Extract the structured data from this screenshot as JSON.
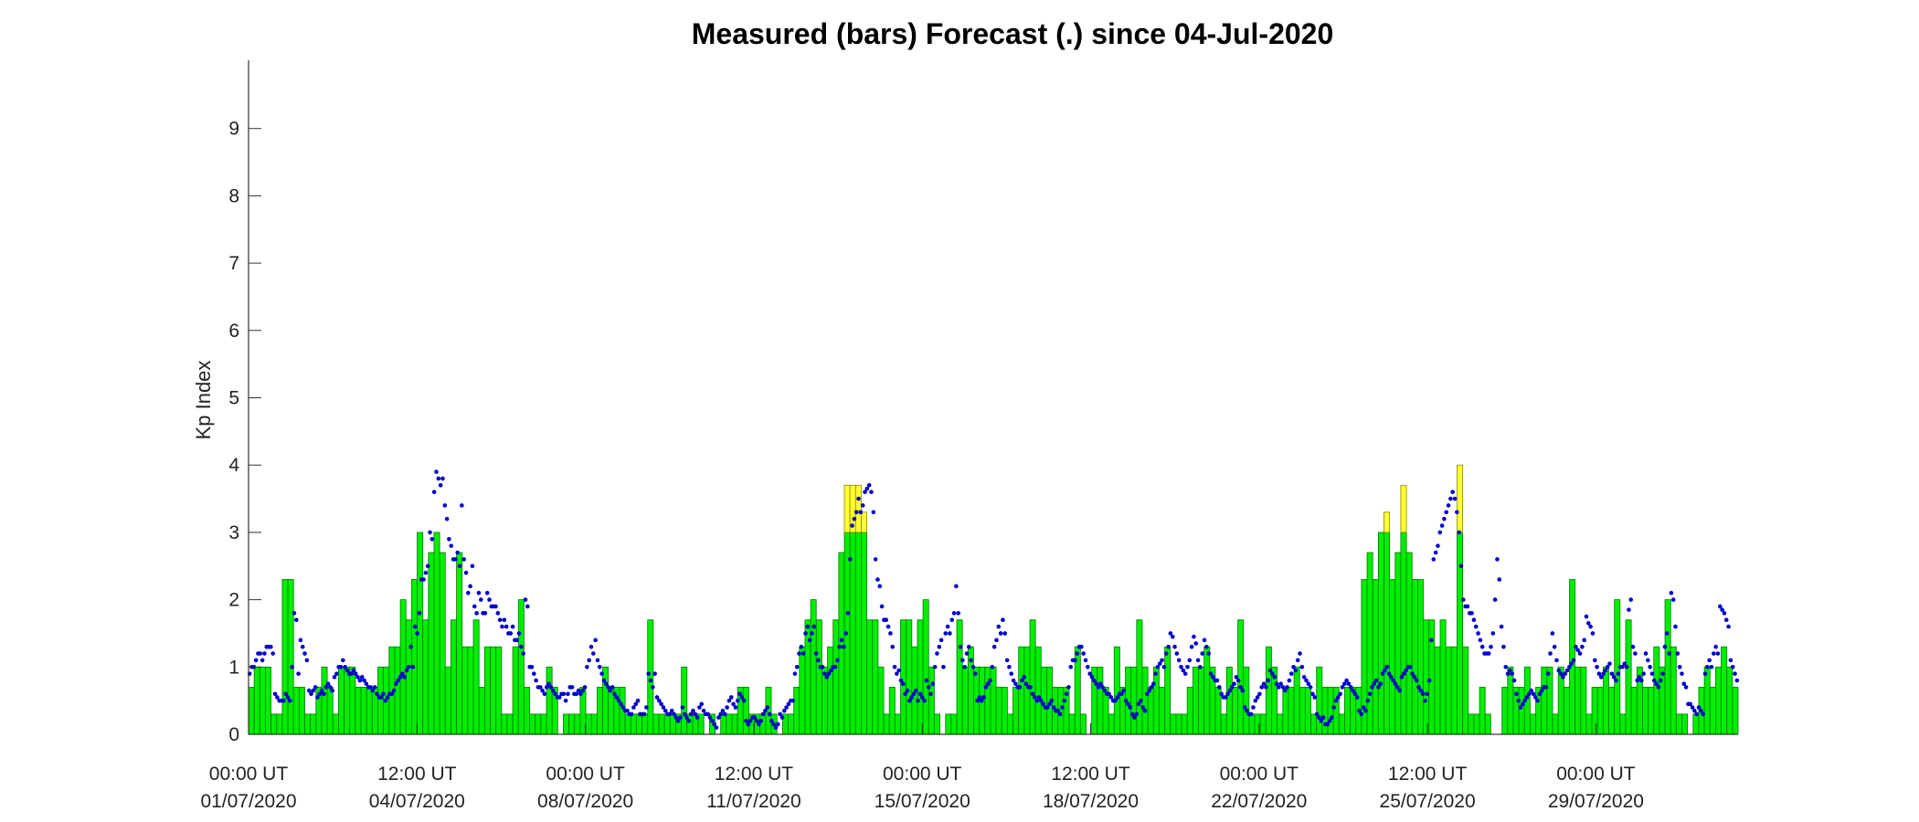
{
  "chart_data": {
    "type": "bar",
    "title": "Measured (bars) Forecast (.) since 04-Jul-2020",
    "ylabel": "Kp Index",
    "xlabel": "",
    "ylim": [
      0,
      10
    ],
    "yticks": [
      0,
      1,
      2,
      3,
      4,
      5,
      6,
      7,
      8,
      9
    ],
    "grid": false,
    "colors": {
      "measured": "#00ee00",
      "measured_edge": "#007a00",
      "high": "#ffff33",
      "high_edge": "#8a8a00",
      "forecast": "#0000cc",
      "axis": "#333333"
    },
    "x_tick_labels": [
      {
        "time": "00:00 UT",
        "date": "01/07/2020"
      },
      {
        "time": "12:00 UT",
        "date": "04/07/2020"
      },
      {
        "time": "00:00 UT",
        "date": "08/07/2020"
      },
      {
        "time": "12:00 UT",
        "date": "11/07/2020"
      },
      {
        "time": "00:00 UT",
        "date": "15/07/2020"
      },
      {
        "time": "12:00 UT",
        "date": "18/07/2020"
      },
      {
        "time": "00:00 UT",
        "date": "22/07/2020"
      },
      {
        "time": "12:00 UT",
        "date": "25/07/2020"
      },
      {
        "time": "00:00 UT",
        "date": "29/07/2020"
      }
    ],
    "series": [
      {
        "name": "Measured",
        "note": "3-hour Kp values starting 00:00 UT 01/07/2020",
        "values": [
          0.7,
          1,
          1,
          1,
          0.3,
          0.3,
          2.3,
          2.3,
          0.7,
          0.7,
          0.3,
          0.3,
          0.7,
          1,
          0.7,
          0.3,
          1,
          1,
          1,
          0.7,
          0.7,
          0.7,
          0.7,
          1,
          1,
          1.3,
          1.3,
          2,
          1.7,
          2.3,
          3,
          1.7,
          2.7,
          3,
          2.7,
          1,
          1.7,
          2.7,
          1.3,
          1.3,
          1.7,
          0.7,
          1.3,
          1.3,
          1.3,
          0.3,
          0.3,
          1.3,
          2,
          0.7,
          0.3,
          0.3,
          0.3,
          1,
          0.7,
          0,
          0.3,
          0.3,
          0.3,
          0.7,
          0.3,
          0.3,
          0.7,
          1,
          0.7,
          0.7,
          0.7,
          0.3,
          0.3,
          0.3,
          0.3,
          1.7,
          0.3,
          0.3,
          0.3,
          0.3,
          0.3,
          1,
          0.3,
          0.3,
          0.3,
          0,
          0.3,
          0,
          0.3,
          0.3,
          0.3,
          0.7,
          0.7,
          0.3,
          0.3,
          0.3,
          0.7,
          0.3,
          0,
          0.3,
          0.3,
          0.7,
          1.3,
          1.7,
          2,
          1.7,
          1,
          1.3,
          1.7,
          2.7,
          3.7,
          3.7,
          3.7,
          3.3,
          1.7,
          1.7,
          1,
          0.3,
          0.7,
          0.3,
          1.7,
          1.7,
          1.3,
          1.7,
          2,
          1,
          0.3,
          0,
          0.3,
          0.3,
          1.7,
          1,
          1.3,
          1,
          1,
          1,
          1,
          0.7,
          0.7,
          0.3,
          0.7,
          1.3,
          1.3,
          1.7,
          1.3,
          1,
          1,
          0.7,
          0.7,
          0.7,
          0.3,
          1.3,
          0.3,
          0,
          1,
          1,
          0.7,
          0.3,
          1.3,
          0.7,
          1,
          1,
          1.7,
          1,
          0.7,
          1,
          0.7,
          1.3,
          0.3,
          0.3,
          0.3,
          0.7,
          1,
          1,
          1.3,
          1,
          0.7,
          0.3,
          1,
          0.7,
          1.7,
          1,
          0.3,
          0.3,
          0.3,
          1.3,
          1,
          0.3,
          0.7,
          0.7,
          1,
          0.7,
          0.7,
          0.3,
          1,
          0.7,
          0.7,
          0.7,
          0.3,
          0.7,
          0.7,
          0.7,
          2.3,
          2.7,
          2.3,
          3,
          3.3,
          2.3,
          2.7,
          3.7,
          2.7,
          2.3,
          2.3,
          1.7,
          1.7,
          1.3,
          1.7,
          1.3,
          1.3,
          4,
          1.3,
          0.3,
          0.3,
          0.7,
          0.3,
          0,
          0,
          0.7,
          1,
          0.7,
          0.7,
          1,
          0.3,
          0.7,
          1,
          1,
          0.3,
          1,
          0.7,
          2.3,
          1,
          1,
          0.3,
          0.7,
          0.7,
          1,
          0.7,
          2,
          0.3,
          1.7,
          0.7,
          1,
          0.7,
          0.7,
          1.3,
          1,
          2,
          1.3,
          0.3,
          0.3,
          0,
          0.3,
          0.7,
          1,
          0.7,
          1,
          1.3,
          1,
          0.7
        ]
      },
      {
        "name": "Forecast",
        "note": "forecast points, 4 per 3-hour interval",
        "values": [
          0.9,
          1.0,
          1.0,
          1.1,
          1.2,
          1.2,
          1.1,
          1.2,
          1.3,
          1.3,
          1.3,
          1.2,
          0.6,
          0.55,
          0.5,
          0.5,
          0.5,
          0.6,
          0.55,
          0.5,
          1.0,
          1.8,
          1.7,
          0.9,
          1.4,
          1.3,
          1.2,
          1.1,
          0.65,
          0.6,
          0.65,
          0.7,
          0.55,
          0.6,
          0.65,
          0.6,
          0.7,
          0.75,
          0.7,
          0.65,
          0.85,
          0.9,
          1.0,
          1.0,
          1.1,
          1.0,
          0.95,
          0.9,
          0.9,
          0.95,
          0.9,
          0.85,
          0.8,
          0.85,
          0.8,
          0.75,
          0.7,
          0.7,
          0.65,
          0.7,
          0.6,
          0.55,
          0.55,
          0.6,
          0.5,
          0.55,
          0.6,
          0.6,
          0.65,
          0.75,
          0.8,
          0.85,
          0.9,
          0.85,
          0.95,
          1.0,
          1.3,
          1.0,
          1.6,
          1.5,
          1.8,
          2.3,
          2.3,
          2.4,
          2.5,
          3.0,
          2.9,
          3.6,
          3.9,
          3.8,
          3.7,
          3.8,
          3.4,
          3.2,
          2.9,
          2.8,
          2.6,
          2.6,
          2.7,
          2.5,
          3.4,
          2.6,
          2.4,
          2.1,
          2.2,
          2.5,
          1.9,
          1.8,
          2.1,
          2.0,
          1.8,
          1.8,
          2.1,
          2.0,
          1.9,
          1.9,
          1.9,
          1.8,
          1.7,
          1.6,
          1.7,
          1.6,
          1.5,
          1.5,
          1.6,
          1.4,
          1.4,
          1.5,
          1.3,
          1.2,
          2.0,
          1.9,
          1.0,
          1.0,
          0.9,
          0.8,
          0.7,
          0.7,
          0.65,
          0.6,
          0.7,
          0.75,
          0.7,
          0.65,
          0.6,
          0.55,
          0.55,
          0.6,
          0.6,
          0.5,
          0.6,
          0.7,
          0.7,
          0.6,
          0.6,
          0.65,
          0.6,
          0.65,
          0.7,
          1.0,
          1.1,
          1.3,
          1.2,
          1.4,
          1.1,
          1.0,
          0.9,
          0.8,
          0.75,
          0.7,
          0.65,
          0.7,
          0.6,
          0.55,
          0.5,
          0.45,
          0.4,
          0.35,
          0.35,
          0.3,
          0.3,
          0.4,
          0.45,
          0.5,
          0.3,
          0.3,
          0.3,
          0.4,
          0.9,
          0.8,
          0.7,
          0.9,
          0.55,
          0.5,
          0.45,
          0.4,
          0.35,
          0.3,
          0.3,
          0.35,
          0.3,
          0.25,
          0.2,
          0.25,
          0.4,
          0.3,
          0.25,
          0.2,
          0.3,
          0.35,
          0.3,
          0.25,
          0.4,
          0.45,
          0.35,
          0.3,
          0.3,
          0.25,
          0.2,
          0.15,
          0.1,
          0.25,
          0.3,
          0.35,
          0.3,
          0.4,
          0.5,
          0.55,
          0.45,
          0.4,
          0.5,
          0.6,
          0.55,
          0.5,
          0.2,
          0.15,
          0.2,
          0.25,
          0.25,
          0.2,
          0.15,
          0.2,
          0.3,
          0.35,
          0.4,
          0.3,
          0.2,
          0.15,
          0.1,
          0.15,
          0.3,
          0.25,
          0.35,
          0.4,
          0.45,
          0.5,
          0.5,
          0.9,
          1.0,
          1.2,
          1.3,
          1.2,
          1.5,
          1.6,
          1.4,
          1.5,
          1.6,
          1.2,
          1.1,
          1.0,
          1.0,
          0.9,
          0.85,
          0.9,
          0.95,
          1.0,
          1.0,
          1.1,
          1.3,
          1.4,
          1.3,
          1.5,
          1.8,
          2.6,
          3.1,
          3.2,
          3.3,
          3.5,
          3.3,
          3.4,
          3.6,
          3.65,
          3.7,
          3.6,
          3.3,
          2.6,
          2.3,
          2.2,
          1.9,
          1.7,
          1.7,
          1.6,
          1.5,
          1.3,
          1.0,
          0.9,
          0.95,
          0.8,
          0.75,
          0.6,
          0.65,
          0.5,
          0.55,
          0.6,
          0.65,
          0.5,
          0.6,
          0.55,
          0.5,
          0.8,
          0.7,
          0.6,
          0.75,
          1.0,
          1.2,
          1.3,
          1.4,
          1.0,
          1.5,
          1.6,
          1.5,
          1.7,
          1.8,
          2.2,
          1.8,
          1.3,
          1.1,
          1.0,
          1.2,
          1.3,
          1.1,
          1.0,
          0.9,
          0.5,
          0.55,
          0.5,
          0.55,
          0.7,
          0.75,
          0.8,
          1.0,
          1.3,
          1.4,
          1.6,
          1.5,
          1.7,
          1.5,
          1.1,
          1.0,
          0.9,
          0.8,
          0.75,
          0.7,
          0.7,
          0.8,
          0.85,
          0.75,
          0.7,
          0.7,
          0.6,
          0.55,
          0.5,
          0.55,
          0.5,
          0.45,
          0.4,
          0.4,
          0.45,
          0.5,
          0.4,
          0.35,
          0.35,
          0.3,
          0.4,
          0.5,
          0.6,
          0.7,
          1.0,
          1.1,
          1.1,
          1.2,
          1.3,
          1.3,
          1.2,
          1.1,
          1.0,
          0.9,
          0.85,
          0.8,
          0.75,
          0.7,
          0.75,
          0.7,
          0.65,
          0.6,
          0.6,
          0.55,
          0.5,
          0.5,
          0.55,
          0.6,
          0.6,
          0.65,
          0.5,
          0.45,
          0.4,
          0.3,
          0.25,
          0.3,
          0.45,
          0.5,
          0.4,
          0.35,
          0.6,
          0.65,
          0.7,
          0.75,
          0.9,
          1.0,
          1.05,
          1.1,
          1.0,
          1.2,
          1.3,
          1.5,
          1.45,
          1.3,
          1.2,
          1.1,
          1.0,
          0.95,
          0.9,
          1.0,
          1.1,
          1.3,
          1.45,
          1.35,
          1.1,
          1.0,
          1.2,
          1.4,
          1.3,
          1.2,
          0.9,
          0.85,
          0.8,
          0.8,
          0.7,
          0.6,
          0.55,
          0.55,
          0.6,
          0.65,
          0.7,
          0.75,
          0.85,
          0.8,
          0.7,
          0.65,
          0.4,
          0.35,
          0.3,
          0.3,
          0.4,
          0.5,
          0.55,
          0.6,
          0.7,
          0.75,
          0.7,
          0.8,
          0.95,
          0.9,
          0.85,
          0.75,
          0.7,
          0.75,
          0.7,
          0.65,
          0.7,
          0.8,
          0.9,
          1.0,
          0.95,
          1.1,
          1.2,
          1.0,
          0.85,
          0.8,
          0.75,
          0.7,
          0.6,
          0.55,
          0.3,
          0.25,
          0.2,
          0.25,
          0.15,
          0.15,
          0.2,
          0.25,
          0.4,
          0.5,
          0.55,
          0.6,
          0.7,
          0.75,
          0.8,
          0.75,
          0.7,
          0.65,
          0.6,
          0.55,
          0.35,
          0.3,
          0.4,
          0.35,
          0.5,
          0.6,
          0.7,
          0.75,
          0.8,
          0.7,
          0.75,
          0.9,
          0.95,
          1.0,
          0.9,
          0.85,
          0.8,
          0.75,
          0.7,
          0.65,
          0.85,
          0.9,
          0.95,
          1.0,
          1.0,
          0.9,
          0.85,
          0.8,
          0.7,
          0.65,
          0.6,
          0.5,
          0.6,
          0.8,
          1.4,
          2.6,
          2.7,
          2.8,
          3.0,
          3.1,
          3.2,
          3.3,
          3.4,
          3.5,
          3.6,
          3.5,
          3.3,
          3.0,
          2.5,
          2.0,
          1.9,
          1.9,
          1.8,
          1.8,
          1.7,
          1.6,
          1.5,
          1.4,
          1.3,
          1.2,
          1.2,
          1.2,
          1.3,
          1.5,
          2.0,
          2.6,
          2.3,
          1.6,
          1.3,
          1.0,
          0.9,
          0.95,
          0.9,
          0.8,
          0.6,
          0.5,
          0.4,
          0.45,
          0.5,
          0.55,
          0.6,
          0.65,
          0.6,
          0.55,
          0.5,
          0.6,
          0.65,
          0.7,
          0.7,
          0.9,
          1.2,
          1.5,
          1.3,
          1.1,
          0.95,
          0.9,
          0.85,
          0.9,
          0.95,
          1.0,
          1.05,
          1.1,
          1.3,
          1.25,
          1.2,
          1.3,
          1.4,
          1.75,
          1.65,
          1.6,
          1.5,
          1.1,
          1.0,
          0.9,
          0.85,
          0.9,
          0.95,
          1.0,
          1.05,
          0.9,
          0.85,
          0.8,
          0.9,
          1.0,
          1.0,
          1.05,
          1.0,
          1.85,
          2.0,
          1.3,
          1.2,
          0.8,
          0.85,
          0.8,
          0.9,
          1.2,
          1.1,
          1.0,
          0.9,
          0.8,
          0.75,
          0.7,
          0.8,
          0.9,
          1.3,
          1.5,
          1.2,
          2.1,
          2.0,
          1.6,
          1.2,
          1.0,
          0.9,
          0.75,
          0.7,
          0.45,
          0.45,
          0.4,
          0.35,
          0.3,
          0.4,
          0.35,
          0.3,
          0.9,
          1.0,
          1.1,
          1.0,
          1.2,
          1.3,
          1.2,
          1.9,
          1.85,
          1.8,
          1.7,
          1.6,
          1.1,
          1.0,
          0.9,
          0.8
        ]
      }
    ]
  }
}
